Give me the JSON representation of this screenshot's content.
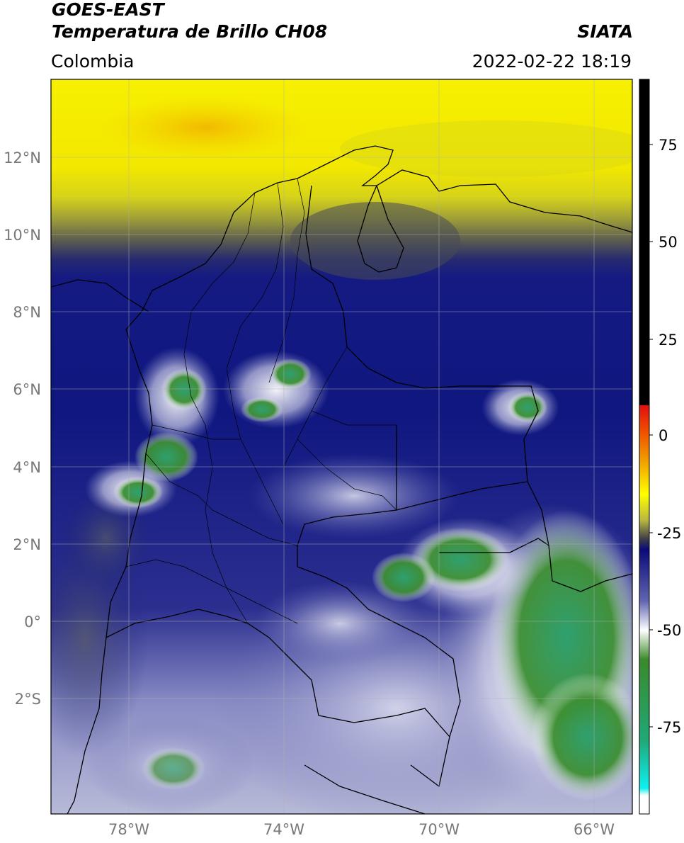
{
  "header": {
    "satellite": "GOES-EAST",
    "product": "Temperatura de Brillo CH08",
    "region": "Colombia",
    "agency": "SIATA",
    "datetime": "2022-02-22 18:19"
  },
  "map": {
    "lat_ticks": [
      "12°N",
      "10°N",
      "8°N",
      "6°N",
      "4°N",
      "2°N",
      "0°",
      "2°S"
    ],
    "lon_ticks": [
      "78°W",
      "74°W",
      "70°W",
      "66°W"
    ],
    "lat_range": [
      -4.6,
      14.4
    ],
    "lon_range": [
      -80.0,
      -65.0
    ],
    "gridlines": true
  },
  "colorbar": {
    "ticks": [
      "75",
      "50",
      "25",
      "0",
      "-25",
      "-50",
      "-75"
    ],
    "range": [
      -95,
      90
    ],
    "stops": [
      {
        "value": 90,
        "color": "#000000"
      },
      {
        "value": 8,
        "color": "#000000"
      },
      {
        "value": 7,
        "color": "#e01010"
      },
      {
        "value": 0,
        "color": "#f06000"
      },
      {
        "value": -8,
        "color": "#f0b000"
      },
      {
        "value": -14,
        "color": "#ffff00"
      },
      {
        "value": -20,
        "color": "#c8c840"
      },
      {
        "value": -25,
        "color": "#505050"
      },
      {
        "value": -28,
        "color": "#0a0a78"
      },
      {
        "value": -45,
        "color": "#9ea0d0"
      },
      {
        "value": -52,
        "color": "#ffffff"
      },
      {
        "value": -60,
        "color": "#3a8a2a"
      },
      {
        "value": -80,
        "color": "#20a878"
      },
      {
        "value": -90,
        "color": "#10f0f0"
      },
      {
        "value": -92,
        "color": "#ffffff"
      }
    ]
  }
}
